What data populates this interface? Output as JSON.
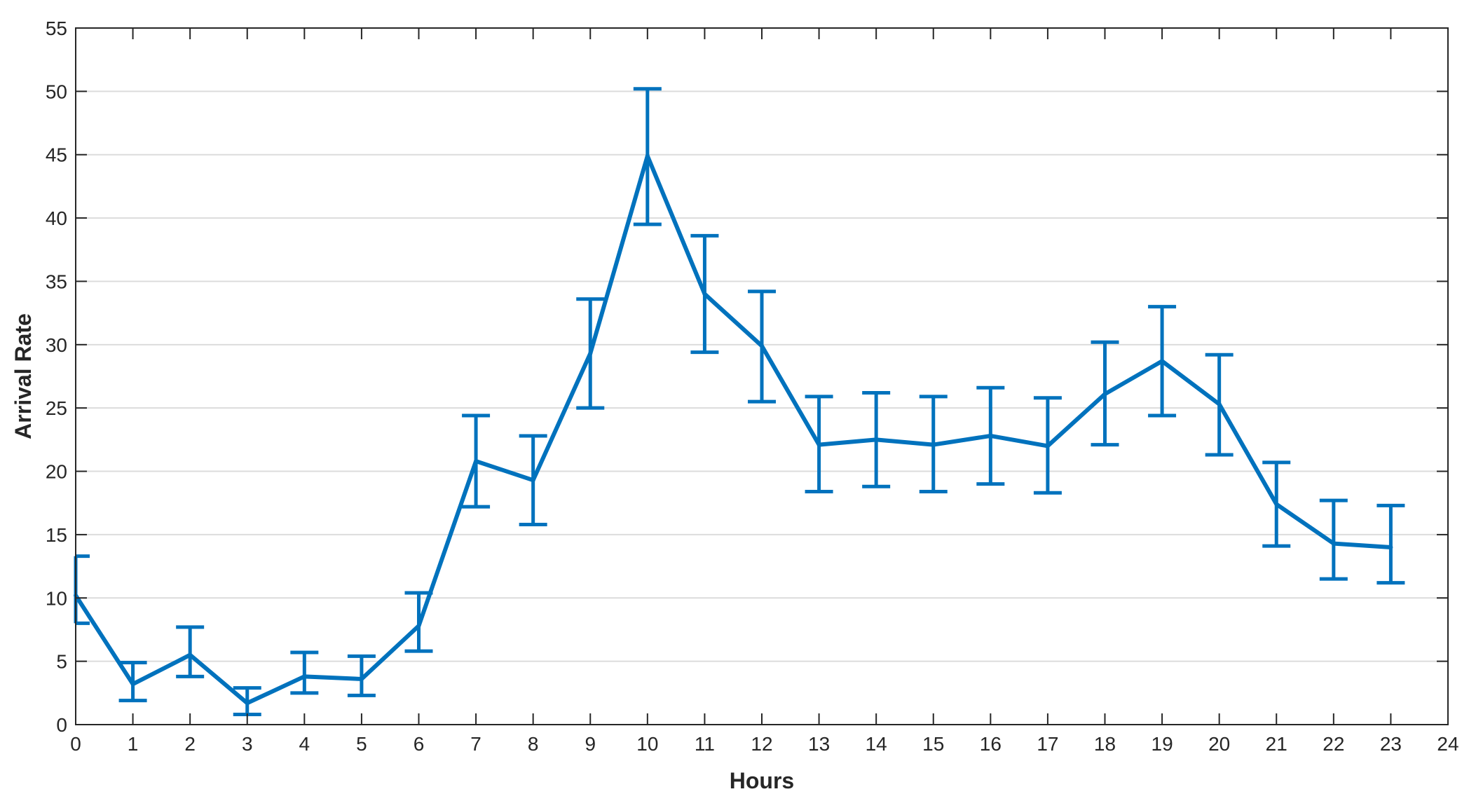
{
  "chart_data": {
    "type": "line",
    "title": "",
    "xlabel": "Hours",
    "ylabel": "Arrival Rate",
    "xlim": [
      0,
      24
    ],
    "ylim": [
      0,
      55
    ],
    "xticks": [
      0,
      1,
      2,
      3,
      4,
      5,
      6,
      7,
      8,
      9,
      10,
      11,
      12,
      13,
      14,
      15,
      16,
      17,
      18,
      19,
      20,
      21,
      22,
      23,
      24
    ],
    "yticks": [
      0,
      5,
      10,
      15,
      20,
      25,
      30,
      35,
      40,
      45,
      50,
      55
    ],
    "grid": "horizontal",
    "color": "#0072BD",
    "series": [
      {
        "x": [
          0,
          1,
          2,
          3,
          4,
          5,
          6,
          7,
          8,
          9,
          10,
          11,
          12,
          13,
          14,
          15,
          16,
          17,
          18,
          19,
          20,
          21,
          22,
          23
        ],
        "y": [
          10.2,
          3.2,
          5.5,
          1.7,
          3.8,
          3.6,
          7.8,
          20.8,
          19.3,
          29.3,
          44.9,
          34.0,
          29.9,
          22.1,
          22.5,
          22.1,
          22.8,
          22.0,
          26.1,
          28.7,
          25.3,
          17.4,
          14.3,
          14.0
        ],
        "error_upper": [
          13.3,
          4.9,
          7.7,
          2.9,
          5.7,
          5.4,
          10.4,
          24.4,
          22.8,
          33.6,
          50.2,
          38.6,
          34.2,
          25.9,
          26.2,
          25.9,
          26.6,
          25.8,
          30.2,
          33.0,
          29.2,
          20.7,
          17.7,
          17.3
        ],
        "error_lower": [
          8.0,
          1.9,
          3.8,
          0.8,
          2.5,
          2.3,
          5.8,
          17.2,
          15.8,
          25.0,
          39.5,
          29.4,
          25.5,
          18.4,
          18.8,
          18.4,
          19.0,
          18.3,
          22.1,
          24.4,
          21.3,
          14.1,
          11.5,
          11.2
        ]
      }
    ]
  }
}
